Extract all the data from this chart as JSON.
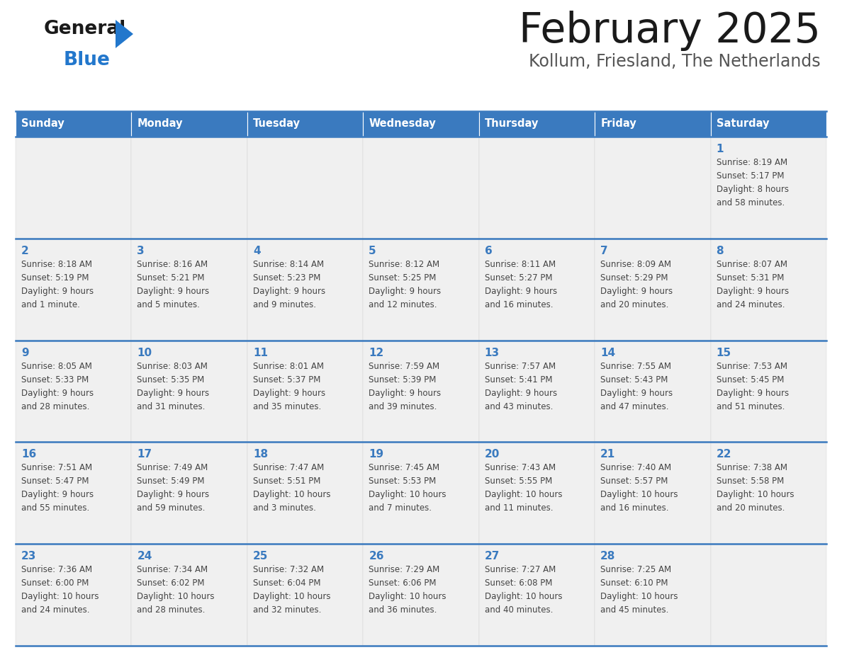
{
  "title": "February 2025",
  "subtitle": "Kollum, Friesland, The Netherlands",
  "days_of_week": [
    "Sunday",
    "Monday",
    "Tuesday",
    "Wednesday",
    "Thursday",
    "Friday",
    "Saturday"
  ],
  "header_bg": "#3a7abf",
  "header_text_color": "#ffffff",
  "cell_bg": "#f0f0f0",
  "border_color": "#3a7abf",
  "day_number_color": "#3a7abf",
  "text_color": "#444444",
  "title_color": "#1a1a1a",
  "subtitle_color": "#555555",
  "logo_general_color": "#1a1a1a",
  "logo_blue_color": "#2277cc",
  "logo_triangle_color": "#2277cc",
  "calendar_data": [
    [
      {
        "day": "",
        "info": ""
      },
      {
        "day": "",
        "info": ""
      },
      {
        "day": "",
        "info": ""
      },
      {
        "day": "",
        "info": ""
      },
      {
        "day": "",
        "info": ""
      },
      {
        "day": "",
        "info": ""
      },
      {
        "day": "1",
        "info": "Sunrise: 8:19 AM\nSunset: 5:17 PM\nDaylight: 8 hours\nand 58 minutes."
      }
    ],
    [
      {
        "day": "2",
        "info": "Sunrise: 8:18 AM\nSunset: 5:19 PM\nDaylight: 9 hours\nand 1 minute."
      },
      {
        "day": "3",
        "info": "Sunrise: 8:16 AM\nSunset: 5:21 PM\nDaylight: 9 hours\nand 5 minutes."
      },
      {
        "day": "4",
        "info": "Sunrise: 8:14 AM\nSunset: 5:23 PM\nDaylight: 9 hours\nand 9 minutes."
      },
      {
        "day": "5",
        "info": "Sunrise: 8:12 AM\nSunset: 5:25 PM\nDaylight: 9 hours\nand 12 minutes."
      },
      {
        "day": "6",
        "info": "Sunrise: 8:11 AM\nSunset: 5:27 PM\nDaylight: 9 hours\nand 16 minutes."
      },
      {
        "day": "7",
        "info": "Sunrise: 8:09 AM\nSunset: 5:29 PM\nDaylight: 9 hours\nand 20 minutes."
      },
      {
        "day": "8",
        "info": "Sunrise: 8:07 AM\nSunset: 5:31 PM\nDaylight: 9 hours\nand 24 minutes."
      }
    ],
    [
      {
        "day": "9",
        "info": "Sunrise: 8:05 AM\nSunset: 5:33 PM\nDaylight: 9 hours\nand 28 minutes."
      },
      {
        "day": "10",
        "info": "Sunrise: 8:03 AM\nSunset: 5:35 PM\nDaylight: 9 hours\nand 31 minutes."
      },
      {
        "day": "11",
        "info": "Sunrise: 8:01 AM\nSunset: 5:37 PM\nDaylight: 9 hours\nand 35 minutes."
      },
      {
        "day": "12",
        "info": "Sunrise: 7:59 AM\nSunset: 5:39 PM\nDaylight: 9 hours\nand 39 minutes."
      },
      {
        "day": "13",
        "info": "Sunrise: 7:57 AM\nSunset: 5:41 PM\nDaylight: 9 hours\nand 43 minutes."
      },
      {
        "day": "14",
        "info": "Sunrise: 7:55 AM\nSunset: 5:43 PM\nDaylight: 9 hours\nand 47 minutes."
      },
      {
        "day": "15",
        "info": "Sunrise: 7:53 AM\nSunset: 5:45 PM\nDaylight: 9 hours\nand 51 minutes."
      }
    ],
    [
      {
        "day": "16",
        "info": "Sunrise: 7:51 AM\nSunset: 5:47 PM\nDaylight: 9 hours\nand 55 minutes."
      },
      {
        "day": "17",
        "info": "Sunrise: 7:49 AM\nSunset: 5:49 PM\nDaylight: 9 hours\nand 59 minutes."
      },
      {
        "day": "18",
        "info": "Sunrise: 7:47 AM\nSunset: 5:51 PM\nDaylight: 10 hours\nand 3 minutes."
      },
      {
        "day": "19",
        "info": "Sunrise: 7:45 AM\nSunset: 5:53 PM\nDaylight: 10 hours\nand 7 minutes."
      },
      {
        "day": "20",
        "info": "Sunrise: 7:43 AM\nSunset: 5:55 PM\nDaylight: 10 hours\nand 11 minutes."
      },
      {
        "day": "21",
        "info": "Sunrise: 7:40 AM\nSunset: 5:57 PM\nDaylight: 10 hours\nand 16 minutes."
      },
      {
        "day": "22",
        "info": "Sunrise: 7:38 AM\nSunset: 5:58 PM\nDaylight: 10 hours\nand 20 minutes."
      }
    ],
    [
      {
        "day": "23",
        "info": "Sunrise: 7:36 AM\nSunset: 6:00 PM\nDaylight: 10 hours\nand 24 minutes."
      },
      {
        "day": "24",
        "info": "Sunrise: 7:34 AM\nSunset: 6:02 PM\nDaylight: 10 hours\nand 28 minutes."
      },
      {
        "day": "25",
        "info": "Sunrise: 7:32 AM\nSunset: 6:04 PM\nDaylight: 10 hours\nand 32 minutes."
      },
      {
        "day": "26",
        "info": "Sunrise: 7:29 AM\nSunset: 6:06 PM\nDaylight: 10 hours\nand 36 minutes."
      },
      {
        "day": "27",
        "info": "Sunrise: 7:27 AM\nSunset: 6:08 PM\nDaylight: 10 hours\nand 40 minutes."
      },
      {
        "day": "28",
        "info": "Sunrise: 7:25 AM\nSunset: 6:10 PM\nDaylight: 10 hours\nand 45 minutes."
      },
      {
        "day": "",
        "info": ""
      }
    ]
  ]
}
